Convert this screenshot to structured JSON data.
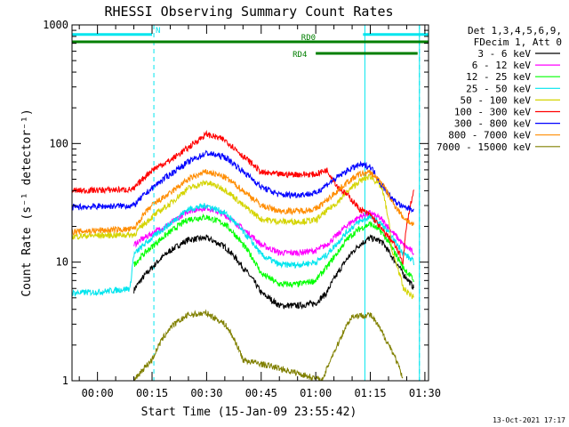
{
  "chart_data": {
    "type": "line",
    "title": "RHESSI Observing Summary Count Rates",
    "xlabel": "Start Time (15-Jan-09 23:55:42)",
    "ylabel": "Count Rate (s⁻¹ detector⁻¹)",
    "y_scale": "log",
    "ylim": [
      1,
      1000
    ],
    "xlim_minutes": [
      -7,
      91
    ],
    "x_ticks": [
      "00:00",
      "00:15",
      "00:30",
      "00:45",
      "01:00",
      "01:15",
      "01:30"
    ],
    "x_tick_minutes": [
      0,
      15,
      30,
      45,
      60,
      75,
      90
    ],
    "y_ticks": [
      {
        "value": 1,
        "label": "1"
      },
      {
        "value": 10,
        "label": "10"
      },
      {
        "value": 100,
        "label": "100"
      },
      {
        "value": 1000,
        "label": "1000"
      }
    ],
    "grid": false,
    "legend_header": [
      "Det 1,3,4,5,6,9,",
      "FDecim 1, Att 0"
    ],
    "legend_position": "right",
    "footer_date": "13-Oct-2021 17:17",
    "flags": [
      {
        "label": "N",
        "color": "#00e5ee",
        "y": 830,
        "segments": [
          [
            -7,
            15
          ],
          [
            73,
            91
          ]
        ]
      },
      {
        "label": "RD0",
        "color": "#007f00",
        "y": 720,
        "segments": [
          [
            -7,
            91
          ]
        ]
      },
      {
        "label": "RD4",
        "color": "#007f00",
        "y": 575,
        "segments": [
          [
            60,
            88
          ]
        ]
      }
    ],
    "night_bounds_minutes": [
      15.5,
      88.5
    ],
    "saa_bounds_minutes": [
      73.5,
      88.5
    ],
    "series": [
      {
        "name": "3 - 6 keV",
        "color": "#000000",
        "x": [
          10,
          15,
          20,
          25,
          30,
          35,
          40,
          45,
          50,
          55,
          60,
          63,
          66,
          69,
          72,
          75,
          78,
          81,
          84,
          87
        ],
        "values": [
          5.8,
          9,
          12.5,
          15.5,
          16,
          13.5,
          9,
          5.5,
          4.3,
          4.3,
          4.5,
          5.5,
          8,
          11,
          14,
          16,
          15,
          11,
          8,
          6
        ]
      },
      {
        "name": "6 - 12 keV",
        "color": "#ff00ff",
        "x": [
          10,
          15,
          20,
          25,
          30,
          35,
          40,
          45,
          50,
          55,
          60,
          63,
          66,
          69,
          72,
          75,
          78,
          81,
          84,
          87
        ],
        "values": [
          14,
          17.5,
          21,
          27,
          29,
          25,
          19,
          14,
          12,
          12,
          12.5,
          14,
          17,
          21,
          24,
          26,
          23,
          18,
          14,
          12
        ]
      },
      {
        "name": "12 - 25 keV",
        "color": "#00ff00",
        "x": [
          10,
          15,
          20,
          25,
          30,
          35,
          40,
          45,
          50,
          55,
          60,
          63,
          66,
          69,
          72,
          75,
          78,
          81,
          84,
          87
        ],
        "values": [
          9.5,
          13.5,
          18,
          23,
          24,
          21,
          14,
          8,
          6.5,
          6.5,
          7,
          9,
          12,
          16,
          19,
          21,
          18,
          13,
          9,
          7
        ]
      },
      {
        "name": "25 - 50 keV",
        "color": "#00e5ee",
        "x": [
          -7,
          0,
          5,
          9,
          10,
          15,
          20,
          25,
          30,
          35,
          40,
          45,
          50,
          55,
          60,
          63,
          66,
          69,
          72,
          75,
          78,
          81,
          84,
          87
        ],
        "values": [
          5.5,
          5.6,
          5.8,
          6,
          11.5,
          16,
          21,
          28,
          30,
          26,
          18,
          11.5,
          9.5,
          9.5,
          10,
          11.5,
          14.5,
          18.5,
          22,
          24,
          21,
          16,
          12,
          10
        ]
      },
      {
        "name": "50 - 100 keV",
        "color": "#d4d400",
        "x": [
          -7,
          0,
          10,
          15,
          20,
          25,
          30,
          35,
          40,
          45,
          50,
          55,
          60,
          63,
          66,
          69,
          72,
          75,
          78,
          81,
          84,
          87
        ],
        "values": [
          16.5,
          16.8,
          17,
          24,
          31,
          42,
          47,
          41,
          30,
          23,
          22,
          22,
          22.5,
          27,
          32,
          40,
          48,
          53,
          43,
          12,
          6,
          5
        ]
      },
      {
        "name": "100 - 300 keV",
        "color": "#ff0000",
        "x": [
          -7,
          0,
          10,
          15,
          20,
          25,
          30,
          35,
          40,
          45,
          50,
          55,
          60,
          63,
          66,
          69,
          72,
          75,
          78,
          81,
          84,
          87
        ],
        "values": [
          40,
          40.5,
          41,
          60,
          72,
          92,
          120,
          107,
          78,
          57,
          55,
          55,
          55,
          60,
          43,
          36,
          28,
          25,
          19,
          15,
          10,
          40
        ]
      },
      {
        "name": "300 - 800 keV",
        "color": "#0000ff",
        "x": [
          -7,
          0,
          10,
          15,
          20,
          25,
          30,
          35,
          40,
          45,
          50,
          55,
          60,
          63,
          66,
          69,
          72,
          75,
          78,
          81,
          84,
          87
        ],
        "values": [
          29,
          29.5,
          30,
          42,
          55,
          70,
          83,
          77,
          58,
          43,
          37,
          37,
          38,
          45,
          52,
          60,
          66,
          64,
          45,
          34,
          29,
          28
        ]
      },
      {
        "name": "800 - 7000 keV",
        "color": "#ff8c00",
        "x": [
          -7,
          0,
          10,
          15,
          20,
          25,
          30,
          35,
          40,
          45,
          50,
          55,
          60,
          63,
          66,
          69,
          72,
          75,
          78,
          81,
          84,
          87
        ],
        "values": [
          18,
          18.5,
          19,
          30,
          38,
          50,
          58,
          52,
          40,
          30,
          27,
          27,
          28,
          33,
          40,
          48,
          55,
          57,
          47,
          32,
          24,
          20
        ]
      },
      {
        "name": "7000 - 15000 keV",
        "color": "#808000",
        "x": [
          10,
          15,
          20,
          25,
          30,
          35,
          40,
          62,
          66,
          70,
          75,
          79,
          84
        ],
        "values": [
          1,
          1.5,
          2.8,
          3.6,
          3.7,
          3,
          1.5,
          1,
          2,
          3.5,
          3.6,
          2.3,
          1
        ]
      }
    ]
  }
}
